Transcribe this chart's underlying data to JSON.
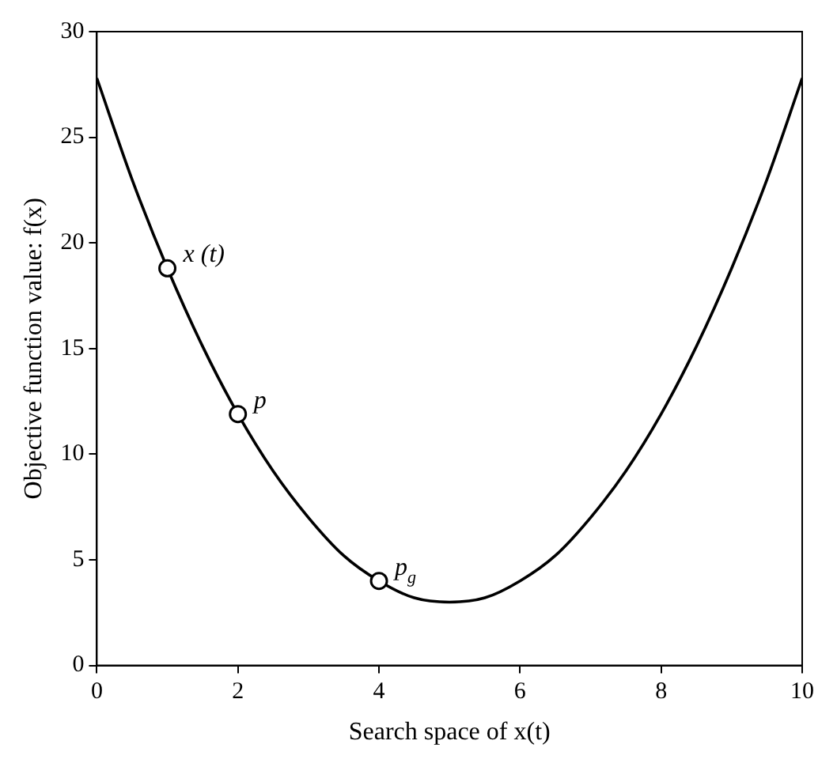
{
  "chart_data": {
    "type": "line",
    "xlabel": "Search space of x(t)",
    "ylabel": "Objective function value: f(x)",
    "xlim": [
      0,
      10
    ],
    "xticks": [
      0,
      2,
      4,
      6,
      8,
      10
    ],
    "ylim": [
      0,
      30
    ],
    "yticks": [
      0,
      5,
      10,
      15,
      20,
      25,
      30
    ],
    "grid": false,
    "legend": false,
    "series": [
      {
        "type": "line",
        "color": "#000000",
        "marker": "none",
        "x": [
          0,
          0.5,
          1,
          1.5,
          2,
          2.5,
          3,
          3.5,
          4,
          4.5,
          5,
          5.5,
          6,
          6.5,
          7,
          7.5,
          8,
          8.5,
          9,
          9.5,
          10
        ],
        "values": [
          27.8,
          23.0,
          18.8,
          15.1,
          11.9,
          9.2,
          7.0,
          5.2,
          4.0,
          3.2,
          3.0,
          3.2,
          4.0,
          5.2,
          7.0,
          9.2,
          11.9,
          15.1,
          18.8,
          23.0,
          27.8
        ]
      },
      {
        "type": "scatter",
        "color": "#000000",
        "marker": "circle",
        "x": [
          1,
          2,
          4
        ],
        "values": [
          18.8,
          11.9,
          4.0
        ]
      }
    ],
    "annotations": [
      {
        "text": "x (t)",
        "x": 1,
        "y": 18.8
      },
      {
        "text": "p",
        "x": 2,
        "y": 11.9
      },
      {
        "text": "p$_{g}$",
        "x": 4,
        "y": 4.0
      }
    ]
  }
}
